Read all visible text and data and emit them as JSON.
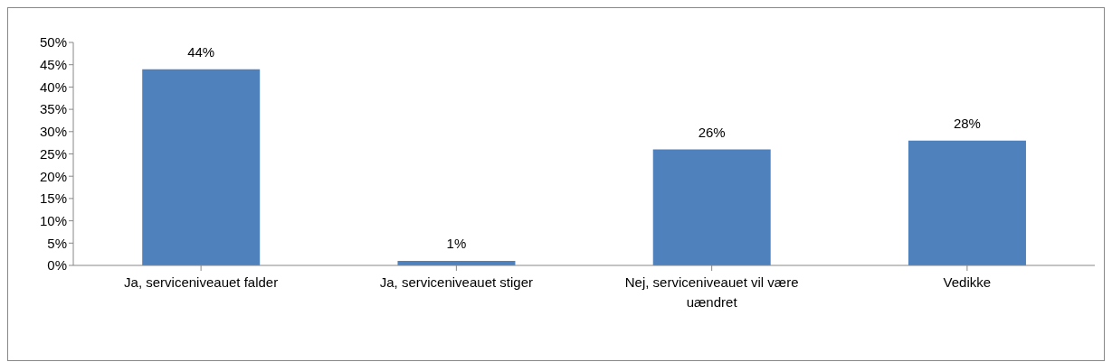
{
  "chart_data": {
    "type": "bar",
    "categories": [
      "Ja, serviceniveauet falder",
      "Ja, serviceniveauet stiger",
      "Nej, serviceniveauet vil være uændret",
      "Vedikke"
    ],
    "values": [
      44,
      1,
      26,
      28
    ],
    "value_labels": [
      "44%",
      "1%",
      "26%",
      "28%"
    ],
    "color": "#4f81bd",
    "ylim": [
      0,
      50
    ],
    "yticks": [
      {
        "value": 0,
        "label": "0%"
      },
      {
        "value": 5,
        "label": "5%"
      },
      {
        "value": 10,
        "label": "10%"
      },
      {
        "value": 15,
        "label": "15%"
      },
      {
        "value": 20,
        "label": "20%"
      },
      {
        "value": 25,
        "label": "25%"
      },
      {
        "value": 30,
        "label": "30%"
      },
      {
        "value": 35,
        "label": "35%"
      },
      {
        "value": 40,
        "label": "40%"
      },
      {
        "value": 45,
        "label": "45%"
      },
      {
        "value": 50,
        "label": "50%"
      }
    ],
    "grid": false,
    "legend": false
  }
}
